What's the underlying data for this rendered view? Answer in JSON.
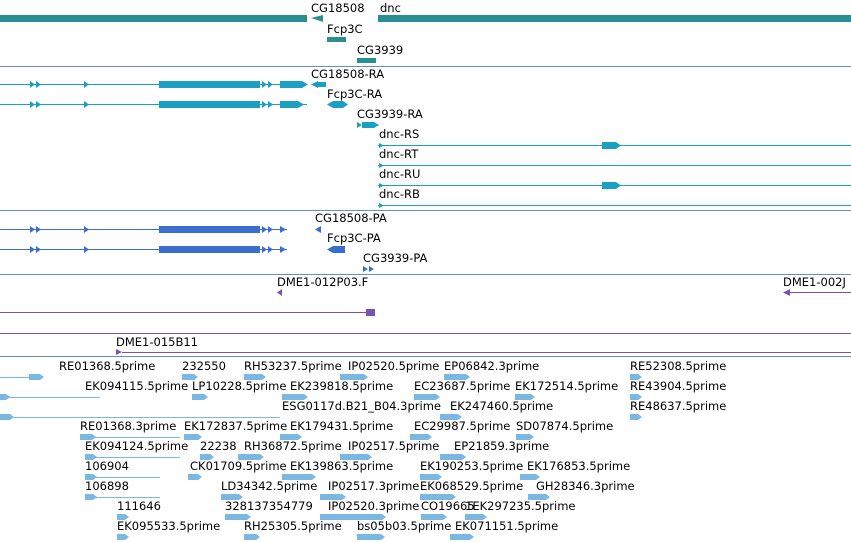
{
  "colors": {
    "gene": "#2a8f92",
    "rna": "#1aa0c0",
    "protein": "#3a6fcf",
    "clone": "#7a52b0",
    "est": "#7ab8e2",
    "divider": "#6a8fb0"
  },
  "tracks": {
    "genes": {
      "features": [
        {
          "name": "CG18508",
          "label": "CG18508"
        },
        {
          "name": "dnc",
          "label": "dnc"
        },
        {
          "name": "Fcp3C",
          "label": "Fcp3C"
        },
        {
          "name": "CG3939",
          "label": "CG3939"
        }
      ]
    },
    "transcripts": {
      "features": [
        {
          "name": "CG18508-RA",
          "label": "CG18508-RA"
        },
        {
          "name": "Fcp3C-RA",
          "label": "Fcp3C-RA"
        },
        {
          "name": "CG3939-RA",
          "label": "CG3939-RA"
        },
        {
          "name": "dnc-RS",
          "label": "dnc-RS"
        },
        {
          "name": "dnc-RT",
          "label": "dnc-RT"
        },
        {
          "name": "dnc-RU",
          "label": "dnc-RU"
        },
        {
          "name": "dnc-RB",
          "label": "dnc-RB"
        }
      ]
    },
    "proteins": {
      "features": [
        {
          "name": "CG18508-PA",
          "label": "CG18508-PA"
        },
        {
          "name": "Fcp3C-PA",
          "label": "Fcp3C-PA"
        },
        {
          "name": "CG3939-PA",
          "label": "CG3939-PA"
        }
      ]
    },
    "clones": {
      "features": [
        {
          "name": "DME1-012P03.F",
          "label": "DME1-012P03.F"
        },
        {
          "name": "DME1-002J",
          "label": "DME1-002J"
        },
        {
          "name": "DME1-015B11",
          "label": "DME1-015B11"
        }
      ]
    },
    "ests": {
      "features": [
        "RE01368.5prime",
        "232550",
        "RH53237.5prime",
        "IP02520.5prime",
        "EP06842.3prime",
        "RE52308.5prime",
        "EK094115.5prime",
        "LP10228.5prime",
        "EK239818.5prime",
        "EC23687.5prime",
        "EK172514.5prime",
        "RE43904.5prime",
        "ESG0117d.B21_B04.3prime",
        "EK247460.5prime",
        "RE48637.5prime",
        "RE01368.3prime",
        "EK172837.5prime",
        "EK179431.5prime",
        "EC29987.5prime",
        "SD07874.5prime",
        "EK094124.5prime",
        "22238",
        "RH36872.5prime",
        "IP02517.5prime",
        "EP21859.3prime",
        "106904",
        "CK01709.5prime",
        "EK139863.5prime",
        "EK190253.5prime",
        "EK176853.5prime",
        "106898",
        "LD34342.5prime",
        "IP02517.3prime",
        "EK068529.5prime",
        "GH28346.3prime",
        "111646",
        "328137354779",
        "IP02520.3prime",
        "CO19665",
        "1EK297235.5prime",
        "EK095533.5prime",
        "RH25305.5prime",
        "bs05b03.5prime",
        "EK071151.5prime"
      ]
    }
  }
}
